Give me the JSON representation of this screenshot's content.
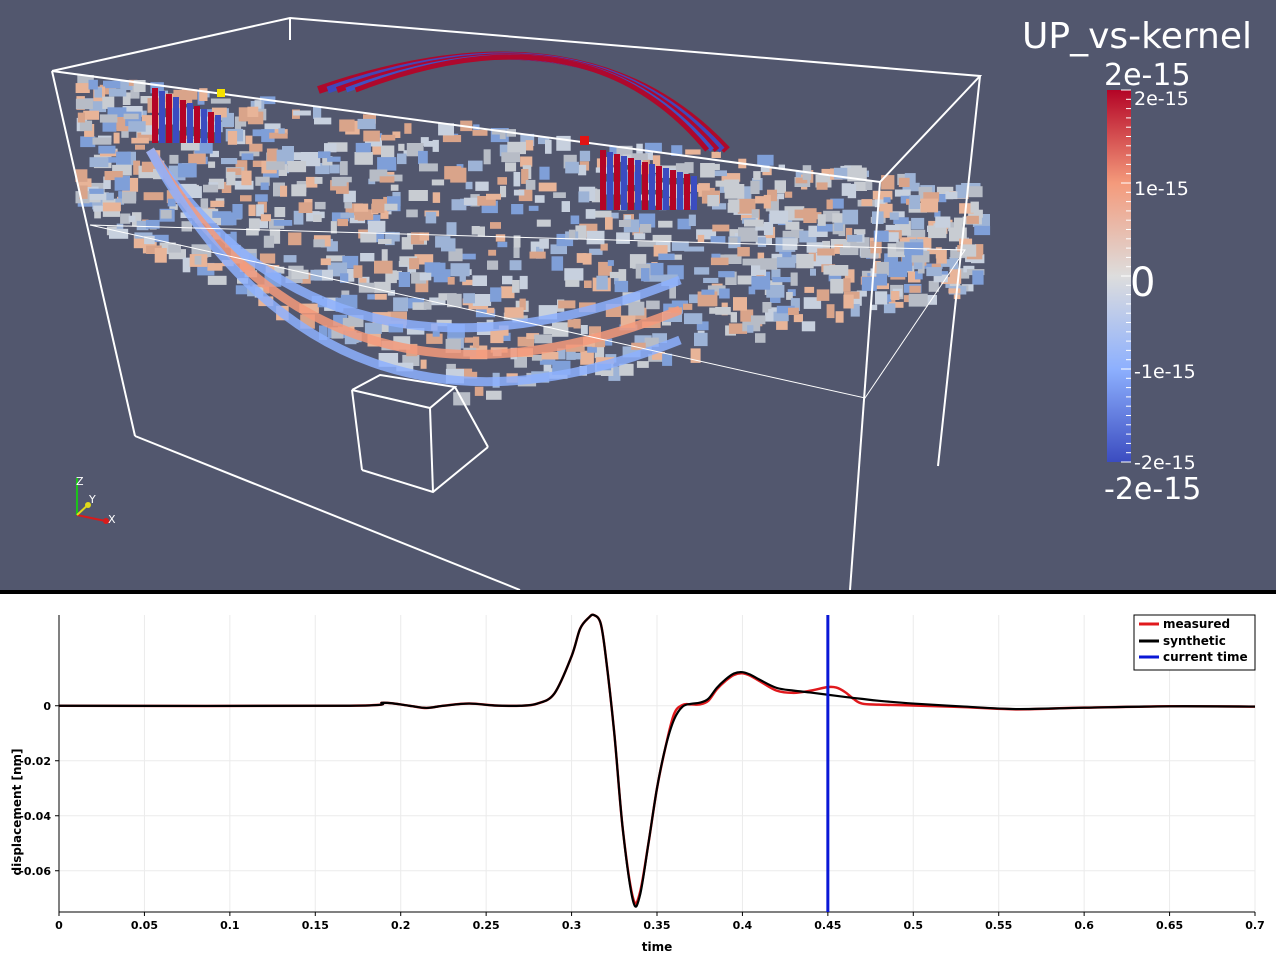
{
  "viewer": {
    "colorbar": {
      "title": "UP_vs-kernel",
      "max_label": "2e-15",
      "min_label": "-2e-15",
      "tick_2e": "2e-15",
      "tick_1e": "1e-15",
      "tick_0": "0",
      "tick_m1e": "-1e-15",
      "tick_m2e": "-2e-15",
      "colors": [
        "#3b4cc0",
        "#8db0fe",
        "#dddddd",
        "#f49a7b",
        "#b40426"
      ]
    },
    "orientation_axes": {
      "x": "X",
      "y": "Y",
      "z": "Z"
    },
    "background": "#52576e"
  },
  "chart_data": {
    "type": "line",
    "xlabel": "time",
    "ylabel": "displacement [nm]",
    "xlim": [
      0,
      0.7
    ],
    "ylim": [
      -0.075,
      0.033
    ],
    "x_ticks": [
      "0",
      "0.05",
      "0.1",
      "0.15",
      "0.2",
      "0.25",
      "0.3",
      "0.35",
      "0.4",
      "0.45",
      "0.5",
      "0.55",
      "0.6",
      "0.65",
      "0.7"
    ],
    "y_ticks": [
      "0",
      "-0.02",
      "-0.04",
      "-0.06"
    ],
    "y_tick_values": [
      0,
      -0.02,
      -0.04,
      -0.06
    ],
    "current_time": 0.45,
    "grid": true,
    "legend_position": "top-right",
    "series": [
      {
        "name": "measured",
        "color": "#e0191d",
        "x": [
          0,
          0.17,
          0.19,
          0.205,
          0.215,
          0.225,
          0.24,
          0.255,
          0.27,
          0.28,
          0.29,
          0.3,
          0.305,
          0.31,
          0.313,
          0.317,
          0.32,
          0.325,
          0.33,
          0.336,
          0.34,
          0.345,
          0.35,
          0.355,
          0.36,
          0.365,
          0.37,
          0.375,
          0.38,
          0.385,
          0.39,
          0.395,
          0.4,
          0.405,
          0.41,
          0.42,
          0.43,
          0.44,
          0.45,
          0.455,
          0.46,
          0.465,
          0.47,
          0.48,
          0.5,
          0.53,
          0.56,
          0.6,
          0.65,
          0.7
        ],
        "y": [
          0,
          0,
          0.0011,
          0,
          -0.0008,
          0,
          0.0008,
          0.0001,
          0,
          0.0008,
          0.0045,
          0.018,
          0.028,
          0.032,
          0.033,
          0.03,
          0.018,
          -0.01,
          -0.045,
          -0.07,
          -0.068,
          -0.05,
          -0.03,
          -0.015,
          -0.003,
          0.0003,
          0.0005,
          0.0005,
          0.0018,
          0.006,
          0.009,
          0.0112,
          0.0118,
          0.0108,
          0.009,
          0.0055,
          0.0047,
          0.0055,
          0.0068,
          0.0066,
          0.005,
          0.0025,
          0.0008,
          0.0004,
          0.0001,
          -0.0005,
          -0.0013,
          -0.0007,
          -0.0002,
          -0.0003
        ]
      },
      {
        "name": "synthetic",
        "color": "#000000",
        "x": [
          0,
          0.17,
          0.19,
          0.205,
          0.215,
          0.225,
          0.24,
          0.255,
          0.27,
          0.28,
          0.29,
          0.3,
          0.305,
          0.31,
          0.313,
          0.317,
          0.32,
          0.325,
          0.33,
          0.336,
          0.34,
          0.345,
          0.35,
          0.355,
          0.36,
          0.365,
          0.37,
          0.375,
          0.38,
          0.385,
          0.39,
          0.395,
          0.4,
          0.405,
          0.41,
          0.42,
          0.43,
          0.44,
          0.45,
          0.46,
          0.47,
          0.48,
          0.5,
          0.53,
          0.56,
          0.6,
          0.65,
          0.7
        ],
        "y": [
          0,
          0,
          0.0011,
          0,
          -0.0008,
          0,
          0.0008,
          0.0001,
          0,
          0.0008,
          0.0045,
          0.018,
          0.028,
          0.032,
          0.033,
          0.03,
          0.018,
          -0.01,
          -0.045,
          -0.071,
          -0.069,
          -0.05,
          -0.03,
          -0.015,
          -0.005,
          -0.0003,
          0.0007,
          0.0011,
          0.0025,
          0.0065,
          0.0095,
          0.0117,
          0.0122,
          0.0112,
          0.0095,
          0.0065,
          0.0055,
          0.0048,
          0.004,
          0.0032,
          0.0025,
          0.0018,
          0.0008,
          -0.0003,
          -0.0012,
          -0.0007,
          -0.0002,
          -0.0003
        ]
      }
    ],
    "current_time_series": {
      "name": "current time",
      "color": "#0a17d6"
    }
  }
}
